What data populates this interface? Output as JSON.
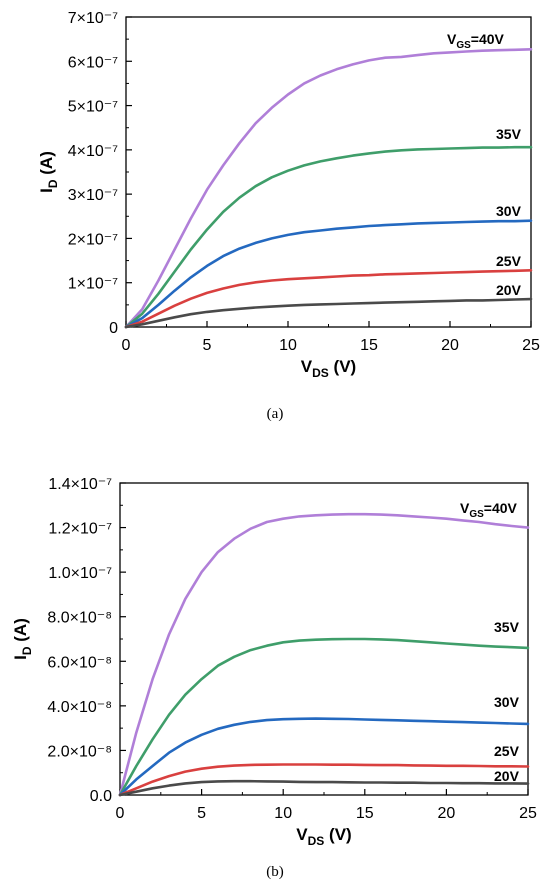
{
  "chart_data": [
    {
      "type": "line",
      "caption": "(a)",
      "xlabel": "V",
      "xlabel_sub": "DS",
      "xlabel_unit": "(V)",
      "ylabel": "I",
      "ylabel_sub": "D",
      "ylabel_unit": "(A)",
      "xlim": [
        0,
        25
      ],
      "ylim": [
        0,
        7e-07
      ],
      "x_ticks": [
        0,
        5,
        10,
        15,
        20,
        25
      ],
      "x_tick_labels": [
        "0",
        "5",
        "10",
        "15",
        "20",
        "25"
      ],
      "y_ticks": [
        0,
        1e-07,
        2e-07,
        3e-07,
        4e-07,
        5e-07,
        6e-07,
        7e-07
      ],
      "y_tick_labels": [
        "0",
        "1×10⁻⁷",
        "2×10⁻⁷",
        "3×10⁻⁷",
        "4×10⁻⁷",
        "5×10⁻⁷",
        "6×10⁻⁷",
        "7×10⁻⁷"
      ],
      "grid": false,
      "x": [
        0,
        1,
        2,
        3,
        4,
        5,
        6,
        7,
        8,
        9,
        10,
        11,
        12,
        13,
        14,
        15,
        16,
        17,
        18,
        19,
        20,
        21,
        22,
        23,
        24,
        25
      ],
      "series": [
        {
          "name": "V<sub>GS</sub>=40V",
          "label": "V",
          "label_sub": "GS",
          "label_rest": "=40V",
          "color": "#b07fd8",
          "values": [
            0,
            4e-08,
            1.05e-07,
            1.75e-07,
            2.45e-07,
            3.1e-07,
            3.65e-07,
            4.15e-07,
            4.6e-07,
            4.95e-07,
            5.25e-07,
            5.5e-07,
            5.68e-07,
            5.82e-07,
            5.93e-07,
            6.02e-07,
            6.08e-07,
            6.1e-07,
            6.14e-07,
            6.18e-07,
            6.2e-07,
            6.22e-07,
            6.24e-07,
            6.25e-07,
            6.26e-07,
            6.27e-07
          ]
        },
        {
          "name": "35V",
          "label": "35V",
          "color": "#3f9e6a",
          "values": [
            0,
            3e-08,
            7.5e-08,
            1.25e-07,
            1.75e-07,
            2.2e-07,
            2.6e-07,
            2.92e-07,
            3.18e-07,
            3.38e-07,
            3.53e-07,
            3.65e-07,
            3.74e-07,
            3.81e-07,
            3.87e-07,
            3.92e-07,
            3.96e-07,
            3.99e-07,
            4.01e-07,
            4.02e-07,
            4.03e-07,
            4.04e-07,
            4.05e-07,
            4.05e-07,
            4.06e-07,
            4.06e-07
          ]
        },
        {
          "name": "30V",
          "label": "30V",
          "color": "#2469c0",
          "values": [
            0,
            2e-08,
            5e-08,
            8.2e-08,
            1.12e-07,
            1.38e-07,
            1.6e-07,
            1.77e-07,
            1.9e-07,
            2e-07,
            2.08e-07,
            2.14e-07,
            2.18e-07,
            2.22e-07,
            2.25e-07,
            2.28e-07,
            2.3e-07,
            2.32e-07,
            2.34e-07,
            2.35e-07,
            2.36e-07,
            2.37e-07,
            2.38e-07,
            2.39e-07,
            2.39e-07,
            2.4e-07
          ]
        },
        {
          "name": "25V",
          "label": "25V",
          "color": "#d9403f",
          "values": [
            0,
            1.2e-08,
            3e-08,
            4.8e-08,
            6.4e-08,
            7.7e-08,
            8.7e-08,
            9.5e-08,
            1.01e-07,
            1.05e-07,
            1.08e-07,
            1.1e-07,
            1.12e-07,
            1.14e-07,
            1.16e-07,
            1.17e-07,
            1.19e-07,
            1.2e-07,
            1.21e-07,
            1.22e-07,
            1.23e-07,
            1.24e-07,
            1.25e-07,
            1.26e-07,
            1.27e-07,
            1.28e-07
          ]
        },
        {
          "name": "20V",
          "label": "20V",
          "color": "#4a4a4a",
          "values": [
            0,
            6e-09,
            1.4e-08,
            2.2e-08,
            2.9e-08,
            3.4e-08,
            3.8e-08,
            4.1e-08,
            4.4e-08,
            4.6e-08,
            4.8e-08,
            5e-08,
            5.1e-08,
            5.2e-08,
            5.3e-08,
            5.4e-08,
            5.5e-08,
            5.6e-08,
            5.7e-08,
            5.8e-08,
            5.9e-08,
            6e-08,
            6e-08,
            6.1e-08,
            6.2e-08,
            6.3e-08
          ]
        }
      ]
    },
    {
      "type": "line",
      "caption": "(b)",
      "xlabel": "V",
      "xlabel_sub": "DS",
      "xlabel_unit": "(V)",
      "ylabel": "I",
      "ylabel_sub": "D",
      "ylabel_unit": "(A)",
      "xlim": [
        0,
        25
      ],
      "ylim": [
        0,
        1.4e-07
      ],
      "x_ticks": [
        0,
        5,
        10,
        15,
        20,
        25
      ],
      "x_tick_labels": [
        "0",
        "5",
        "10",
        "15",
        "20",
        "25"
      ],
      "y_ticks": [
        0,
        2e-08,
        4e-08,
        6e-08,
        8e-08,
        1e-07,
        1.2e-07,
        1.4e-07
      ],
      "y_tick_labels": [
        "0.0",
        "2.0×10⁻⁸",
        "4.0×10⁻⁸",
        "6.0×10⁻⁸",
        "8.0×10⁻⁸",
        "1.0×10⁻⁷",
        "1.2×10⁻⁷",
        "1.4×10⁻⁷"
      ],
      "grid": false,
      "x": [
        0,
        1,
        2,
        3,
        4,
        5,
        6,
        7,
        8,
        9,
        10,
        11,
        12,
        13,
        14,
        15,
        16,
        17,
        18,
        19,
        20,
        21,
        22,
        23,
        24,
        25
      ],
      "series": [
        {
          "name": "V<sub>GS</sub>=40V",
          "label": "V",
          "label_sub": "GS",
          "label_rest": "=40V",
          "color": "#b07fd8",
          "values": [
            0,
            2.8e-08,
            5.2e-08,
            7.2e-08,
            8.8e-08,
            1e-07,
            1.09e-07,
            1.15e-07,
            1.195e-07,
            1.225e-07,
            1.24e-07,
            1.25e-07,
            1.255e-07,
            1.258e-07,
            1.26e-07,
            1.26e-07,
            1.258e-07,
            1.255e-07,
            1.25e-07,
            1.245e-07,
            1.24e-07,
            1.232e-07,
            1.225e-07,
            1.215e-07,
            1.207e-07,
            1.2e-07
          ]
        },
        {
          "name": "35V",
          "label": "35V",
          "color": "#3f9e6a",
          "values": [
            0,
            1.3e-08,
            2.5e-08,
            3.6e-08,
            4.5e-08,
            5.2e-08,
            5.8e-08,
            6.2e-08,
            6.5e-08,
            6.7e-08,
            6.85e-08,
            6.93e-08,
            6.97e-08,
            6.99e-08,
            7e-08,
            7e-08,
            6.98e-08,
            6.95e-08,
            6.9e-08,
            6.85e-08,
            6.8e-08,
            6.75e-08,
            6.7e-08,
            6.66e-08,
            6.63e-08,
            6.6e-08
          ]
        },
        {
          "name": "30V",
          "label": "30V",
          "color": "#2469c0",
          "values": [
            0,
            7e-09,
            1.3e-08,
            1.9e-08,
            2.35e-08,
            2.7e-08,
            2.97e-08,
            3.15e-08,
            3.28e-08,
            3.36e-08,
            3.4e-08,
            3.42e-08,
            3.43e-08,
            3.42e-08,
            3.41e-08,
            3.39e-08,
            3.37e-08,
            3.35e-08,
            3.33e-08,
            3.31e-08,
            3.29e-08,
            3.27e-08,
            3.25e-08,
            3.23e-08,
            3.21e-08,
            3.19e-08
          ]
        },
        {
          "name": "25V",
          "label": "25V",
          "color": "#d9403f",
          "values": [
            0,
            3e-09,
            6e-09,
            8.5e-09,
            1.05e-08,
            1.18e-08,
            1.27e-08,
            1.32e-08,
            1.35e-08,
            1.36e-08,
            1.37e-08,
            1.37e-08,
            1.37e-08,
            1.36e-08,
            1.36e-08,
            1.35e-08,
            1.34e-08,
            1.34e-08,
            1.33e-08,
            1.32e-08,
            1.31e-08,
            1.31e-08,
            1.3e-08,
            1.29e-08,
            1.29e-08,
            1.28e-08
          ]
        },
        {
          "name": "20V",
          "label": "20V",
          "color": "#4a4a4a",
          "values": [
            0,
            1.5e-09,
            3e-09,
            4.2e-09,
            5.2e-09,
            5.8e-09,
            6.1e-09,
            6.2e-09,
            6.2e-09,
            6.1e-09,
            6e-09,
            5.9e-09,
            5.8e-09,
            5.8e-09,
            5.7e-09,
            5.6e-09,
            5.6e-09,
            5.5e-09,
            5.5e-09,
            5.4e-09,
            5.4e-09,
            5.3e-09,
            5.3e-09,
            5.2e-09,
            5.2e-09,
            5.1e-09
          ]
        }
      ]
    }
  ]
}
